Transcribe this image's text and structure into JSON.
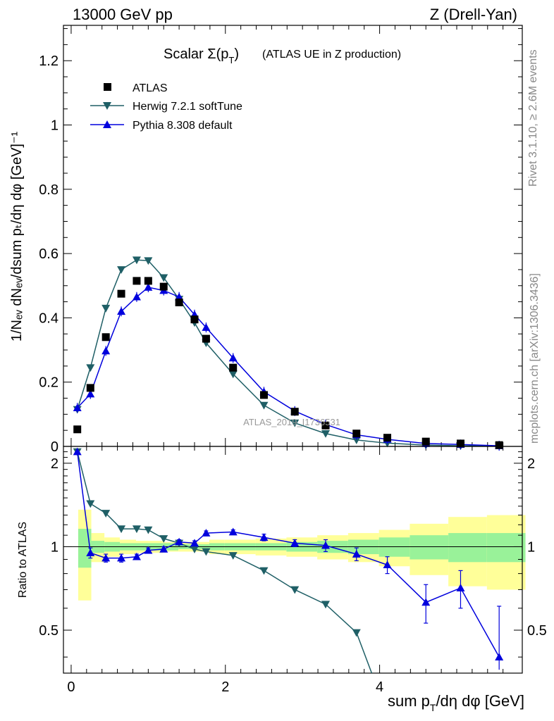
{
  "header": {
    "left": "13000 GeV pp",
    "right": "Z (Drell-Yan)"
  },
  "side_text": {
    "rivet": "Rivet 3.1.10, ≥ 2.6M events",
    "mcplots": "mcplots.cern.ch [arXiv:1306.3436]"
  },
  "chart_data": {
    "type": "scatter",
    "title_main": "Scalar Σ(p",
    "title_main_sub": "T",
    "title_main_close": ")",
    "title_extra": "(ATLAS UE in Z production)",
    "xlabel": "sum p",
    "xlabel_sub": "T",
    "xlabel_tail": "/dη dφ [GeV]",
    "ylabel": "1/Nₑᵥ dNₑᵥ/dsum pₜ/dη dφ [GeV]⁻¹",
    "ratio_ylabel": "Ratio to ATLAS",
    "watermark": "ATLAS_2019_I1736531",
    "xlim": [
      -0.1,
      5.85
    ],
    "ylim": [
      0,
      1.31
    ],
    "ratio_ylim": [
      0.35,
      2.3
    ],
    "xticks": [
      0,
      2,
      4
    ],
    "yticks": [
      0,
      0.2,
      0.4,
      0.6,
      0.8,
      1,
      1.2
    ],
    "ytick_labels": [
      "0",
      "0.2",
      "0.4",
      "0.6",
      "0.8",
      "1",
      "1.2"
    ],
    "ratio_yticks": [
      0.5,
      1,
      2
    ],
    "ratio_ytick_labels": [
      "0.5",
      "1",
      "2"
    ],
    "legend_position": "top-left",
    "colors": {
      "atlas": "#000000",
      "herwig": "#1f5f66",
      "pythia": "#0000dd",
      "band_inner": "#99f299",
      "band_outer": "#ffff99"
    },
    "series": [
      {
        "name": "ATLAS",
        "marker": "square",
        "x": [
          0.08,
          0.25,
          0.45,
          0.65,
          0.85,
          1.0,
          1.2,
          1.4,
          1.6,
          1.75,
          2.1,
          2.5,
          2.9,
          3.3,
          3.7,
          4.1,
          4.6,
          5.05,
          5.55
        ],
        "y": [
          0.053,
          0.182,
          0.34,
          0.475,
          0.515,
          0.515,
          0.497,
          0.448,
          0.395,
          0.335,
          0.245,
          0.16,
          0.108,
          0.065,
          0.04,
          0.027,
          0.015,
          0.009,
          0.004
        ]
      },
      {
        "name": "Herwig 7.2.1 softTune",
        "marker": "triangle-down",
        "x": [
          0.08,
          0.25,
          0.45,
          0.65,
          0.85,
          1.0,
          1.2,
          1.4,
          1.6,
          1.75,
          2.1,
          2.5,
          2.9,
          3.3,
          3.7,
          4.1,
          4.6,
          5.05,
          5.55
        ],
        "y": [
          0.115,
          0.245,
          0.43,
          0.55,
          0.58,
          0.578,
          0.525,
          0.458,
          0.385,
          0.322,
          0.225,
          0.128,
          0.073,
          0.04,
          0.02,
          0.01,
          0.004,
          0.002,
          0.001
        ]
      },
      {
        "name": "Pythia 8.308 default",
        "marker": "triangle-up",
        "x": [
          0.08,
          0.25,
          0.45,
          0.65,
          0.85,
          1.0,
          1.2,
          1.4,
          1.6,
          1.75,
          2.1,
          2.5,
          2.9,
          3.3,
          3.7,
          4.1,
          4.6,
          5.05,
          5.55
        ],
        "y": [
          0.12,
          0.163,
          0.297,
          0.42,
          0.465,
          0.495,
          0.485,
          0.465,
          0.41,
          0.37,
          0.275,
          0.17,
          0.11,
          0.068,
          0.036,
          0.022,
          0.009,
          0.006,
          0.002
        ]
      }
    ],
    "ratios": [
      {
        "name": "Herwig 7.2.1 softTune",
        "x": [
          0.08,
          0.25,
          0.45,
          0.65,
          0.85,
          1.0,
          1.2,
          1.4,
          1.6,
          1.75,
          2.1,
          2.5,
          2.9,
          3.3,
          3.7,
          4.05
        ],
        "y": [
          2.2,
          1.43,
          1.32,
          1.16,
          1.16,
          1.15,
          1.07,
          1.03,
          0.98,
          0.96,
          0.93,
          0.82,
          0.7,
          0.62,
          0.49,
          0.27
        ]
      },
      {
        "name": "Pythia 8.308 default",
        "x": [
          0.08,
          0.25,
          0.45,
          0.65,
          0.85,
          1.0,
          1.2,
          1.4,
          1.6,
          1.75,
          2.1,
          2.5,
          2.9,
          3.3,
          3.7,
          4.1,
          4.6,
          5.05,
          5.55
        ],
        "y": [
          2.2,
          0.95,
          0.91,
          0.91,
          0.92,
          0.97,
          0.98,
          1.04,
          1.03,
          1.12,
          1.13,
          1.08,
          1.03,
          1.01,
          0.94,
          0.86,
          0.63,
          0.71,
          0.4
        ],
        "err": [
          0,
          0.04,
          0.03,
          0.03,
          0.02,
          0.02,
          0.02,
          0.02,
          0.02,
          0.02,
          0.02,
          0.03,
          0.03,
          0.05,
          0.05,
          0.06,
          0.1,
          0.11,
          0.21
        ]
      }
    ],
    "band_edges": [
      0.0,
      0.17,
      0.34,
      0.54,
      0.75,
      0.92,
      1.1,
      1.3,
      1.5,
      1.7,
      1.9,
      2.3,
      2.7,
      3.1,
      3.5,
      3.9,
      4.3,
      4.8,
      5.3,
      5.8
    ],
    "band_inner": [
      0.16,
      0.05,
      0.04,
      0.03,
      0.03,
      0.03,
      0.03,
      0.02,
      0.02,
      0.03,
      0.03,
      0.03,
      0.04,
      0.05,
      0.06,
      0.08,
      0.1,
      0.12,
      0.12
    ],
    "band_outer": [
      0.36,
      0.12,
      0.08,
      0.06,
      0.05,
      0.05,
      0.04,
      0.04,
      0.04,
      0.06,
      0.06,
      0.07,
      0.08,
      0.1,
      0.12,
      0.15,
      0.21,
      0.28,
      0.3
    ]
  }
}
